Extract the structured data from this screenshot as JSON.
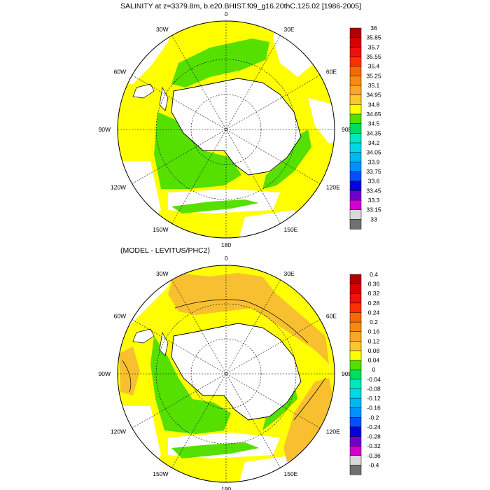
{
  "panels": [
    {
      "title": "SALINITY at z=3379.8m, b.e20.BHIST.f09_g16.20thC.125.02 [1986-2005]",
      "colorbar": {
        "labels": [
          "36",
          "35.85",
          "35.7",
          "35.55",
          "35.4",
          "35.25",
          "35.1",
          "34.95",
          "34.8",
          "34.65",
          "34.5",
          "34.35",
          "34.2",
          "34.05",
          "33.9",
          "33.75",
          "33.6",
          "33.45",
          "33.3",
          "33.15",
          "33"
        ],
        "colors": [
          "#b00000",
          "#d80000",
          "#f01010",
          "#ff3000",
          "#f56a00",
          "#f88a10",
          "#f8a828",
          "#fbc830",
          "#ffff00",
          "#55e000",
          "#00dd60",
          "#00e8c0",
          "#00d8e8",
          "#00b8f0",
          "#0090ff",
          "#0050ff",
          "#0000dd",
          "#7000cc",
          "#d000d0",
          "#d8d8d8",
          "#707070"
        ]
      }
    },
    {
      "title": "(MODEL - LEVITUS/PHC2)",
      "colorbar": {
        "labels": [
          "0.4",
          "0.36",
          "0.32",
          "0.28",
          "0.24",
          "0.2",
          "0.16",
          "0.12",
          "0.08",
          "0.04",
          "0",
          "-0.04",
          "-0.08",
          "-0.12",
          "-0.16",
          "-0.2",
          "-0.24",
          "-0.28",
          "-0.32",
          "-0.36",
          "-0.4"
        ],
        "colors": [
          "#b00000",
          "#d80000",
          "#f01010",
          "#ff3000",
          "#f56a00",
          "#f88a10",
          "#f8a828",
          "#fbc830",
          "#ffff00",
          "#55e000",
          "#00dd60",
          "#00e8c0",
          "#00d8e8",
          "#00b8f0",
          "#0090ff",
          "#0050ff",
          "#0000dd",
          "#7000cc",
          "#d000d0",
          "#d8d8d8",
          "#707070"
        ]
      }
    }
  ],
  "longitude_labels": [
    "0",
    "30E",
    "60E",
    "90E",
    "120E",
    "150E",
    "180",
    "150W",
    "120W",
    "90W",
    "60W",
    "30W"
  ],
  "colors": {
    "yellow": "#ffff00",
    "green": "#55e000",
    "orange": "#f8c030",
    "land": "#ffffff"
  }
}
